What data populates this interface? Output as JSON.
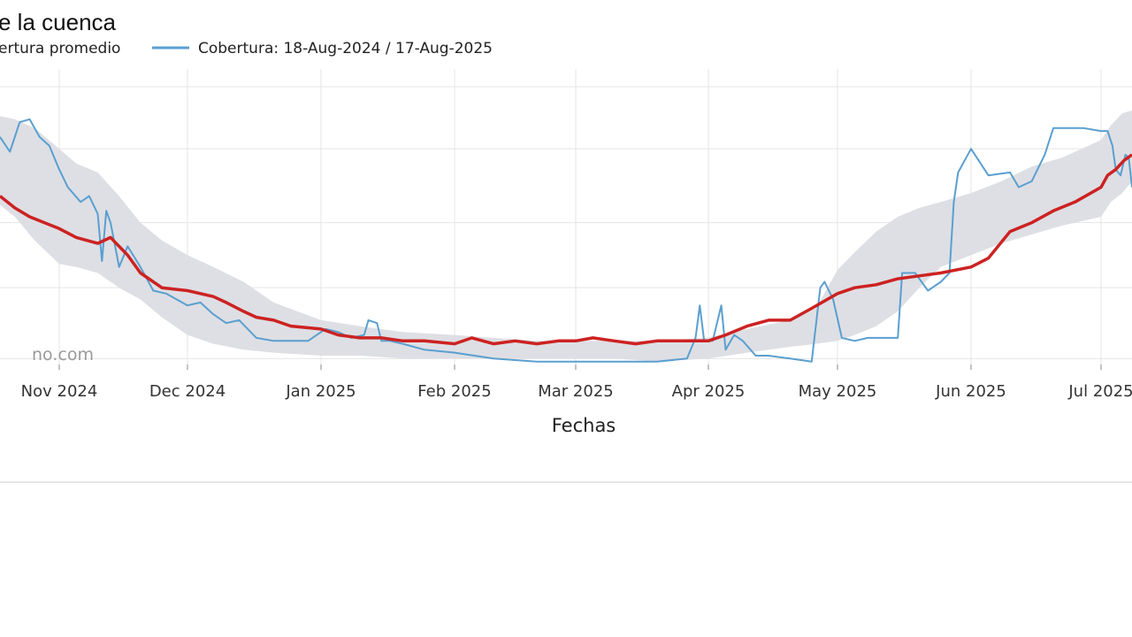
{
  "title": "e la cuenca",
  "watermark": "no.com",
  "legend": [
    {
      "name": "ertura promedio",
      "color": "#cc2222"
    },
    {
      "name": "Cobertura: 18-Aug-2024 / 17-Aug-2025",
      "color": "#5a9fd0"
    }
  ],
  "chart_data": {
    "type": "line",
    "title": "e la cuenca",
    "xlabel": "Fechas",
    "ylabel": "",
    "x_range": [
      "2024-10-20",
      "2025-07-20"
    ],
    "y_range": [
      0,
      100
    ],
    "grid": true,
    "legend_position": "top-left",
    "x_ticks": [
      {
        "date": "2024-11-01",
        "label": "Nov 2024"
      },
      {
        "date": "2024-12-01",
        "label": "Dec 2024"
      },
      {
        "date": "2025-01-01",
        "label": "Jan 2025"
      },
      {
        "date": "2025-02-01",
        "label": "Feb 2025"
      },
      {
        "date": "2025-03-01",
        "label": "Mar 2025"
      },
      {
        "date": "2025-04-01",
        "label": "Apr 2025"
      },
      {
        "date": "2025-05-01",
        "label": "May 2025"
      },
      {
        "date": "2025-06-01",
        "label": "Jun 2025"
      },
      {
        "date": "2025-07-01",
        "label": "Jul 2025"
      }
    ],
    "y_gridlines": [
      2,
      26,
      48,
      73,
      94
    ],
    "band": {
      "name": "range",
      "color": "#dcdde3",
      "x": [
        "2024-10-20",
        "2024-10-23",
        "2024-10-27",
        "2024-11-01",
        "2024-11-05",
        "2024-11-10",
        "2024-11-15",
        "2024-11-20",
        "2024-11-25",
        "2024-12-01",
        "2024-12-07",
        "2024-12-14",
        "2024-12-21",
        "2025-01-01",
        "2025-01-10",
        "2025-01-20",
        "2025-02-01",
        "2025-02-10",
        "2025-02-20",
        "2025-03-01",
        "2025-03-10",
        "2025-03-20",
        "2025-04-01",
        "2025-04-10",
        "2025-04-20",
        "2025-04-26",
        "2025-05-01",
        "2025-05-05",
        "2025-05-10",
        "2025-05-15",
        "2025-05-20",
        "2025-05-25",
        "2025-06-01",
        "2025-06-08",
        "2025-06-15",
        "2025-06-22",
        "2025-07-01",
        "2025-07-07",
        "2025-07-14",
        "2025-07-20"
      ],
      "upper": [
        84,
        83,
        80,
        73,
        68,
        65,
        57,
        48,
        42,
        37,
        33,
        28,
        21,
        15,
        13,
        11,
        10,
        9,
        8,
        8,
        8,
        8,
        9,
        12,
        15,
        19,
        32,
        38,
        45,
        50,
        53,
        55,
        58,
        62,
        67,
        70,
        76,
        81,
        85,
        86
      ],
      "lower": [
        54,
        50,
        42,
        34,
        33,
        31,
        26,
        22,
        16,
        10,
        7,
        5,
        4,
        3,
        3,
        2,
        2,
        2,
        2,
        2,
        2,
        1,
        2,
        4,
        6,
        7,
        8,
        10,
        13,
        18,
        26,
        33,
        37,
        41,
        44,
        47,
        50,
        55,
        58,
        62
      ]
    },
    "series": [
      {
        "name": "ertura promedio",
        "color": "#cc2222",
        "x": [
          "2024-10-20",
          "2024-10-23",
          "2024-10-26",
          "2024-10-29",
          "2024-11-01",
          "2024-11-05",
          "2024-11-10",
          "2024-11-13",
          "2024-11-17",
          "2024-11-20",
          "2024-11-25",
          "2024-12-01",
          "2024-12-07",
          "2024-12-10",
          "2024-12-14",
          "2024-12-17",
          "2024-12-21",
          "2024-12-25",
          "2025-01-01",
          "2025-01-05",
          "2025-01-10",
          "2025-01-15",
          "2025-01-20",
          "2025-01-25",
          "2025-02-01",
          "2025-02-05",
          "2025-02-10",
          "2025-02-15",
          "2025-02-20",
          "2025-02-25",
          "2025-03-01",
          "2025-03-05",
          "2025-03-10",
          "2025-03-15",
          "2025-03-20",
          "2025-03-25",
          "2025-04-01",
          "2025-04-05",
          "2025-04-10",
          "2025-04-15",
          "2025-04-20",
          "2025-04-25",
          "2025-05-01",
          "2025-05-05",
          "2025-05-10",
          "2025-05-15",
          "2025-05-20",
          "2025-05-25",
          "2025-06-01",
          "2025-06-05",
          "2025-06-10",
          "2025-06-15",
          "2025-06-20",
          "2025-06-25",
          "2025-07-01",
          "2025-07-05",
          "2025-07-10",
          "2025-07-15",
          "2025-07-20"
        ],
        "y": [
          57,
          53,
          50,
          48,
          46,
          43,
          41,
          43,
          37,
          31,
          26,
          25,
          23,
          21,
          18,
          16,
          15,
          13,
          12,
          10,
          9,
          9,
          8,
          8,
          7,
          9,
          7,
          8,
          7,
          8,
          8,
          9,
          8,
          7,
          8,
          8,
          8,
          10,
          13,
          15,
          15,
          19,
          24,
          26,
          27,
          29,
          30,
          31,
          33,
          36,
          45,
          48,
          52,
          55,
          60,
          64,
          66,
          69,
          71
        ]
      },
      {
        "name": "Cobertura: 18-Aug-2024 / 17-Aug-2025",
        "color": "#5a9fd0",
        "x": [
          "2024-10-20",
          "2024-10-22",
          "2024-10-24",
          "2024-10-26",
          "2024-10-28",
          "2024-10-30",
          "2024-11-01",
          "2024-11-03",
          "2024-11-06",
          "2024-11-08",
          "2024-11-10",
          "2024-11-11",
          "2024-11-12",
          "2024-11-13",
          "2024-11-15",
          "2024-11-17",
          "2024-11-20",
          "2024-11-23",
          "2024-11-26",
          "2024-12-01",
          "2024-12-04",
          "2024-12-07",
          "2024-12-10",
          "2024-12-13",
          "2024-12-17",
          "2024-12-21",
          "2024-12-25",
          "2024-12-29",
          "2025-01-02",
          "2025-01-05",
          "2025-01-08",
          "2025-01-11",
          "2025-01-12",
          "2025-01-14",
          "2025-01-15",
          "2025-01-17",
          "2025-01-20",
          "2025-01-25",
          "2025-02-01",
          "2025-02-10",
          "2025-02-20",
          "2025-03-01",
          "2025-03-10",
          "2025-03-20",
          "2025-03-27",
          "2025-03-29",
          "2025-03-30",
          "2025-03-31",
          "2025-04-02",
          "2025-04-04",
          "2025-04-05",
          "2025-04-07",
          "2025-04-09",
          "2025-04-12",
          "2025-04-15",
          "2025-04-20",
          "2025-04-25",
          "2025-04-27",
          "2025-04-28",
          "2025-04-30",
          "2025-05-02",
          "2025-05-05",
          "2025-05-08",
          "2025-05-12",
          "2025-05-15",
          "2025-05-16",
          "2025-05-19",
          "2025-05-22",
          "2025-05-25",
          "2025-05-27",
          "2025-05-28",
          "2025-05-29",
          "2025-06-01",
          "2025-06-05",
          "2025-06-10",
          "2025-06-12",
          "2025-06-15",
          "2025-06-18",
          "2025-06-20",
          "2025-06-24",
          "2025-06-27",
          "2025-07-01",
          "2025-07-05",
          "2025-07-08",
          "2025-07-10",
          "2025-07-13",
          "2025-07-16",
          "2025-07-18",
          "2025-07-20"
        ],
        "y": [
          77,
          72,
          82,
          83,
          77,
          74,
          66,
          60,
          55,
          57,
          51,
          35,
          52,
          48,
          33,
          40,
          33,
          25,
          24,
          20,
          21,
          17,
          14,
          15,
          9,
          8,
          8,
          8,
          12,
          11,
          9,
          10,
          15,
          14,
          8,
          8,
          7,
          5,
          4,
          2,
          1,
          1,
          1,
          1,
          2,
          9,
          20,
          8,
          8,
          20,
          5,
          10,
          8,
          3,
          3,
          2,
          1,
          26,
          28,
          22,
          9,
          8,
          9,
          9,
          9,
          31,
          31,
          25,
          28,
          31,
          55,
          65,
          73,
          64,
          65,
          60,
          62,
          71,
          80,
          80,
          80,
          79,
          79,
          74,
          66,
          64,
          71,
          70,
          60
        ]
      }
    ]
  }
}
